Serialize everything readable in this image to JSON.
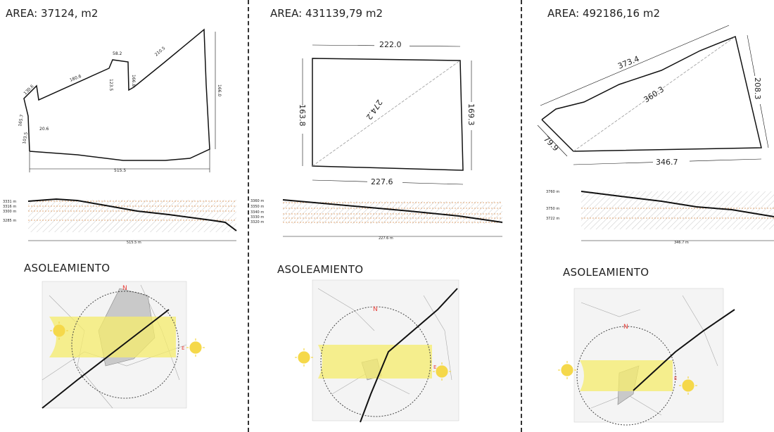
{
  "panels": [
    {
      "area_label": "AREA: 37124, m2",
      "plan_dims": [
        "180.6",
        "130.6",
        "166.8",
        "123.5",
        "58.2",
        "165.7",
        "20.6",
        "103.5",
        "210.5",
        "166.0",
        "180.2",
        "515.5"
      ],
      "profile_levels": [
        "3331 m",
        "3316 m",
        "3300 m",
        "3285 m"
      ],
      "profile_length": "515.5 m",
      "section_title": "ASOLEAMIENTO",
      "sun_north": "N",
      "sun_east": "E"
    },
    {
      "area_label": "AREA: 431139,79 m2",
      "plan_dims": [
        "222.0",
        "163.8",
        "169.3",
        "274.2",
        "227.6"
      ],
      "profile_levels": [
        "3360 m",
        "3350 m",
        "3340 m",
        "3330 m",
        "3320 m"
      ],
      "profile_length": "227.6 m",
      "section_title": "ASOLEAMIENTO",
      "sun_north": "N",
      "sun_east": "E"
    },
    {
      "area_label": "AREA: 492186,16 m2",
      "plan_dims": [
        "373.4",
        "360.3",
        "208.3",
        "79.9",
        "346.7"
      ],
      "profile_levels": [
        "3760 m",
        "3750 m",
        "3722 m"
      ],
      "profile_length": "346.7 m",
      "section_title": "ASOLEAMIENTO",
      "sun_north": "N",
      "sun_east": "E"
    }
  ],
  "colors": {
    "sun_band": "#f6ec6b",
    "sun": "#f5d84a",
    "north": "#e8403a",
    "contour": "#d88a4a",
    "hatch": "#bbbbbb"
  }
}
